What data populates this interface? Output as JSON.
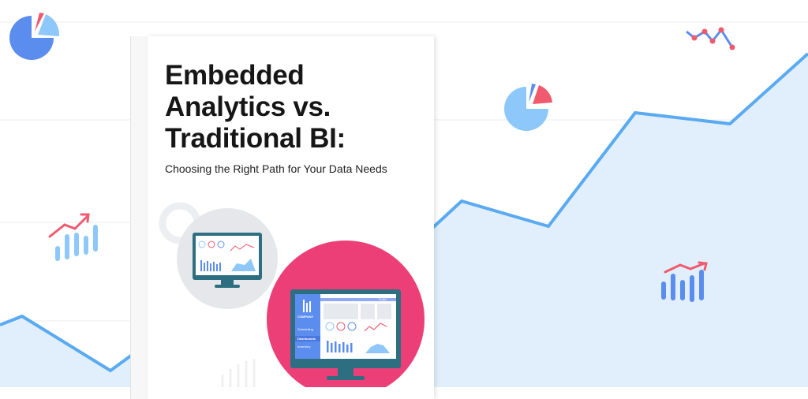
{
  "cover": {
    "title_lines": [
      "Embedded",
      "Analytics vs.",
      "Traditional BI:"
    ],
    "subtitle": "Choosing the Right Path for Your Data Needs"
  },
  "dashboard_mockup": {
    "brand": "COMPANY",
    "nav_items": [
      "Scheduling",
      "Dashboards",
      "Inventory"
    ],
    "active_nav": "Dashboards",
    "profile_label": "Profile"
  },
  "colors": {
    "line_blue": "#5aaaf2",
    "area_fill": "#e1effc",
    "pink": "#ec3f78",
    "bar_blue": "#5b8def",
    "pie_light": "#8ec8fb",
    "accent_red": "#f05a6e",
    "monitor_teal": "#2d6f80"
  }
}
